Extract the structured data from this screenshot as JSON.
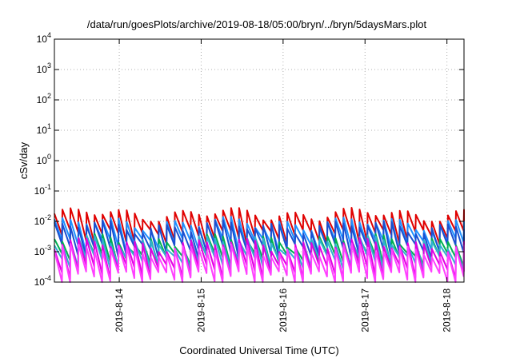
{
  "chart_data": {
    "type": "line",
    "title": "/data/run/goesPlots/archive/2019-08-18/05:00/bryn/../bryn/5daysMars.plot",
    "xlabel": "Coordinated Universal Time (UTC)",
    "ylabel": "cSv/day",
    "y_scale": "log",
    "ylim": [
      0.0001,
      10000
    ],
    "y_ticks": [
      {
        "base": "10",
        "exp": "4"
      },
      {
        "base": "10",
        "exp": "3"
      },
      {
        "base": "10",
        "exp": "2"
      },
      {
        "base": "10",
        "exp": "1"
      },
      {
        "base": "10",
        "exp": "0"
      },
      {
        "base": "10",
        "exp": "-1"
      },
      {
        "base": "10",
        "exp": "-2"
      },
      {
        "base": "10",
        "exp": "-3"
      },
      {
        "base": "10",
        "exp": "-4"
      }
    ],
    "xlim": [
      "2019-08-13 05:00",
      "2019-08-18 05:00"
    ],
    "x_ticks": [
      "2019-8-14",
      "2019-8-15",
      "2019-8-16",
      "2019-8-17",
      "2019-8-18"
    ],
    "grid": true,
    "legend": "none",
    "series": [
      {
        "color": "#e00000",
        "peak": 0.018,
        "trough": 0.0035
      },
      {
        "color": "#1e90ff",
        "peak": 0.009,
        "trough": 0.0018
      },
      {
        "color": "#1a4fd0",
        "peak": 0.007,
        "trough": 0.0012
      },
      {
        "color": "#00b050",
        "peak": 0.0025,
        "trough": 0.0006
      },
      {
        "color": "#2fb0d0",
        "peak": 0.0022,
        "trough": 0.0005
      },
      {
        "color": "#e000e0",
        "peak": 0.0018,
        "trough": 0.00025
      },
      {
        "color": "#ff40ff",
        "peak": 0.0012,
        "trough": 0.00015
      }
    ]
  }
}
